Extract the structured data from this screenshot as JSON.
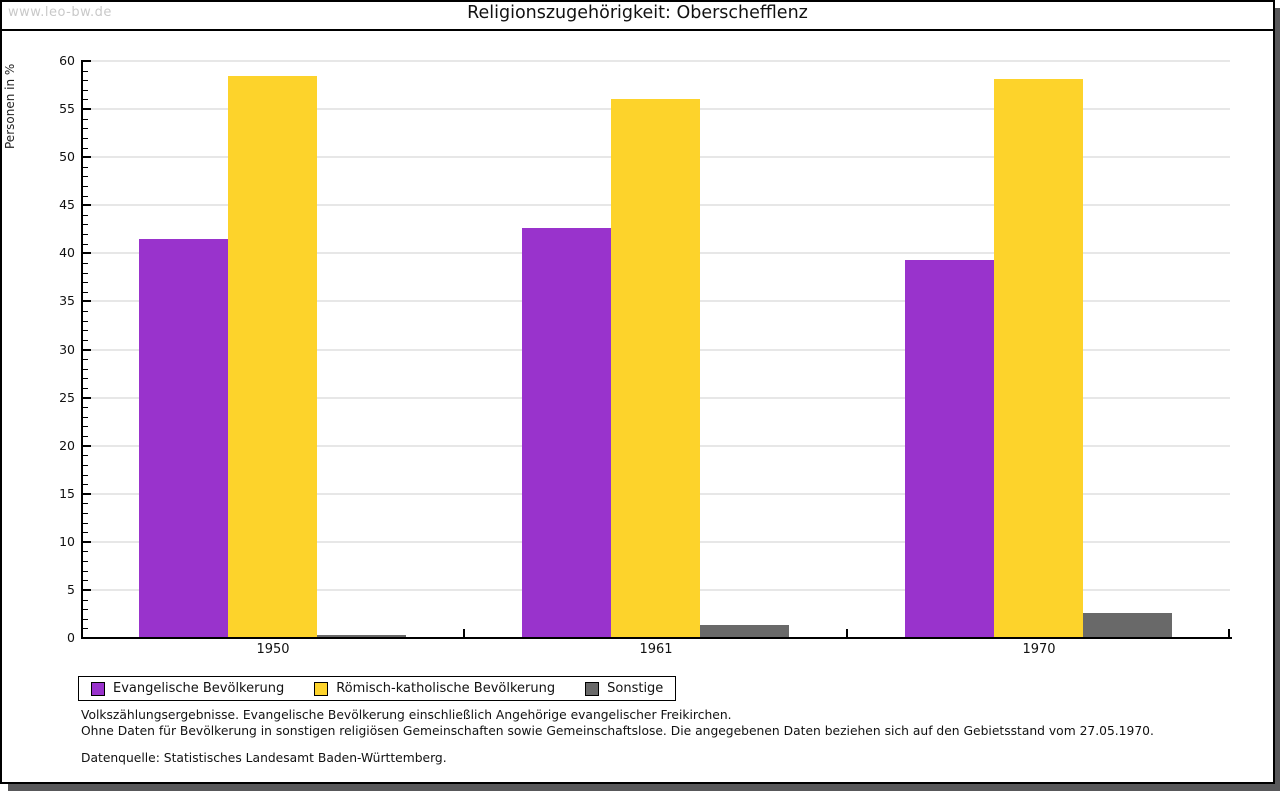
{
  "watermark": "www.leo-bw.de",
  "title": "Religionszugehörigkeit: Oberschefflenz",
  "chart_data": {
    "type": "bar",
    "title": "Religionszugehörigkeit: Oberschefflenz",
    "xlabel": "",
    "ylabel": "Personen in %",
    "ylim": [
      0,
      60
    ],
    "ytick_step": 5,
    "grid": true,
    "legend_position": "bottom",
    "categories": [
      "1950",
      "1961",
      "1970"
    ],
    "series": [
      {
        "name": "Evangelische Bevölkerung",
        "color": "#9933cc",
        "values": [
          41.5,
          42.6,
          39.3
        ]
      },
      {
        "name": "Römisch-katholische Bevölkerung",
        "color": "#fdd32b",
        "values": [
          58.4,
          56.1,
          58.1
        ]
      },
      {
        "name": "Sonstige",
        "color": "#696969",
        "values": [
          0.3,
          1.3,
          2.6
        ]
      }
    ]
  },
  "footnotes": {
    "line1": "Volkszählungsergebnisse. Evangelische Bevölkerung einschließlich Angehörige evangelischer Freikirchen.",
    "line2": "Ohne Daten für Bevölkerung in sonstigen religiösen Gemeinschaften sowie Gemeinschaftslose. Die angegebenen Daten beziehen sich auf den Gebietsstand vom 27.05.1970.",
    "source": "Datenquelle: Statistisches Landesamt Baden-Württemberg."
  },
  "colors": {
    "grid": "#e7e7e7",
    "axis": "#000000",
    "watermark": "#c9c9c9",
    "shadow": "#58585a",
    "background": "#ffffff"
  }
}
